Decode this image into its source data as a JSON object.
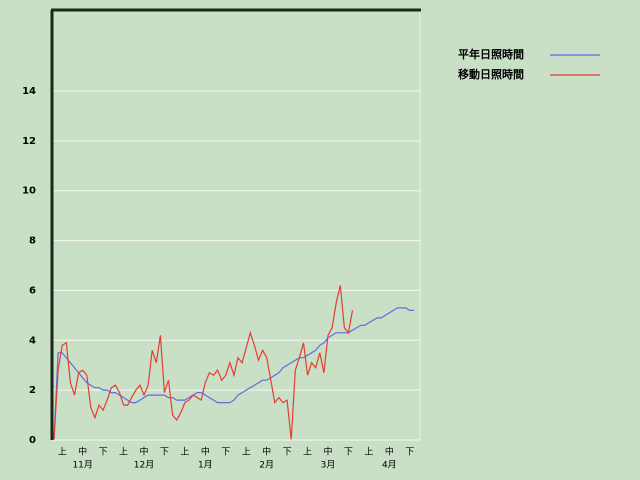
{
  "chart_data": {
    "type": "line",
    "categories": [
      null,
      null,
      "上",
      null,
      null,
      null,
      null,
      "中",
      null,
      null,
      null,
      null,
      "下",
      null,
      null,
      null,
      null,
      "上",
      null,
      null,
      null,
      null,
      "中",
      null,
      null,
      null,
      null,
      "下",
      null,
      null,
      null,
      null,
      "上",
      null,
      null,
      null,
      null,
      "中",
      null,
      null,
      null,
      null,
      "下",
      null,
      null,
      null,
      null,
      "上",
      null,
      null,
      null,
      null,
      "中",
      null,
      null,
      null,
      null,
      "下",
      null,
      null,
      null,
      null,
      "上",
      null,
      null,
      null,
      null,
      "中",
      null,
      null,
      null,
      null,
      "下",
      null,
      null,
      null,
      null,
      "上",
      null,
      null,
      null,
      null,
      "中",
      null,
      null,
      null,
      null,
      "下",
      null,
      null
    ],
    "months": [
      null,
      null,
      null,
      null,
      null,
      null,
      null,
      "11月",
      null,
      null,
      null,
      null,
      null,
      null,
      null,
      null,
      null,
      null,
      null,
      null,
      null,
      null,
      "12月",
      null,
      null,
      null,
      null,
      null,
      null,
      null,
      null,
      null,
      null,
      null,
      null,
      null,
      null,
      "1月",
      null,
      null,
      null,
      null,
      null,
      null,
      null,
      null,
      null,
      null,
      null,
      null,
      null,
      null,
      "2月",
      null,
      null,
      null,
      null,
      null,
      null,
      null,
      null,
      null,
      null,
      null,
      null,
      null,
      null,
      "3月",
      null,
      null,
      null,
      null,
      null,
      null,
      null,
      null,
      null,
      null,
      null,
      null,
      null,
      null,
      "4月",
      null,
      null,
      null,
      null,
      null,
      null,
      null
    ],
    "series": [
      {
        "name": "平年日照時間",
        "color": "#5a6ee6",
        "values": [
          0,
          3.5,
          3.5,
          3.3,
          3.1,
          2.9,
          2.7,
          2.5,
          2.3,
          2.2,
          2.1,
          2.1,
          2.0,
          2.0,
          1.9,
          1.9,
          1.8,
          1.7,
          1.6,
          1.5,
          1.5,
          1.6,
          1.7,
          1.8,
          1.8,
          1.8,
          1.8,
          1.8,
          1.7,
          1.7,
          1.6,
          1.6,
          1.6,
          1.7,
          1.8,
          1.9,
          1.9,
          1.8,
          1.7,
          1.6,
          1.5,
          1.5,
          1.5,
          1.5,
          1.6,
          1.8,
          1.9,
          2.0,
          2.1,
          2.2,
          2.3,
          2.4,
          2.4,
          2.5,
          2.6,
          2.7,
          2.9,
          3.0,
          3.1,
          3.2,
          3.3,
          3.3,
          3.4,
          3.5,
          3.6,
          3.8,
          3.9,
          4.1,
          4.2,
          4.3,
          4.3,
          4.3,
          4.3,
          4.4,
          4.5,
          4.6,
          4.6,
          4.7,
          4.8,
          4.9,
          4.9,
          5.0,
          5.1,
          5.2,
          5.3,
          5.3,
          5.3,
          5.2,
          5.2,
          null
        ]
      },
      {
        "name": "移動日照時間",
        "color": "#e63c32",
        "values": [
          0,
          2.8,
          3.8,
          3.9,
          2.3,
          1.8,
          2.7,
          2.8,
          2.6,
          1.3,
          0.9,
          1.4,
          1.2,
          1.6,
          2.1,
          2.2,
          1.9,
          1.4,
          1.4,
          1.7,
          2.0,
          2.2,
          1.8,
          2.2,
          3.6,
          3.1,
          4.2,
          1.9,
          2.4,
          1.0,
          0.8,
          1.1,
          1.5,
          1.6,
          1.8,
          1.7,
          1.6,
          2.3,
          2.7,
          2.6,
          2.8,
          2.4,
          2.6,
          3.1,
          2.6,
          3.3,
          3.1,
          3.7,
          4.3,
          3.8,
          3.2,
          3.6,
          3.3,
          2.4,
          1.5,
          1.7,
          1.5,
          1.6,
          0.0,
          2.8,
          3.3,
          3.9,
          2.6,
          3.1,
          2.9,
          3.5,
          2.7,
          4.2,
          4.5,
          5.5,
          6.2,
          4.5,
          4.3,
          5.2,
          null,
          null,
          null,
          null,
          null,
          null,
          null,
          null,
          null,
          null,
          null,
          null,
          null,
          null,
          null,
          null
        ]
      }
    ],
    "ylim": [
      0,
      17.25
    ],
    "yticks": [
      0,
      2,
      4,
      6,
      8,
      10,
      12,
      14
    ],
    "grid": true,
    "legend": "top-right"
  }
}
